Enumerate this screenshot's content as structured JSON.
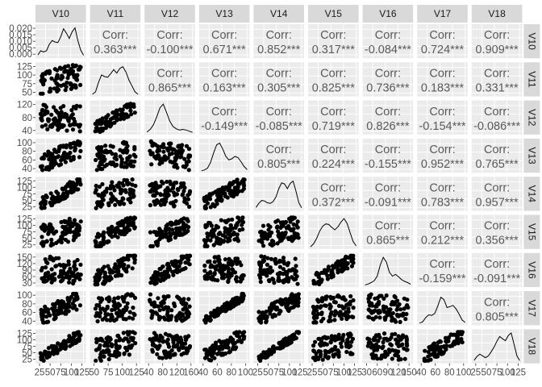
{
  "chart_data": {
    "type": "scatter-matrix",
    "title": "",
    "variables": [
      "V10",
      "V11",
      "V12",
      "V13",
      "V14",
      "V15",
      "V16",
      "V17",
      "V18"
    ],
    "corr_label": "Corr:",
    "correlations": [
      [
        "",
        "0.363***",
        "-0.100***",
        "0.671***",
        "0.852***",
        "0.317***",
        "-0.084***",
        "0.724***",
        "0.909***"
      ],
      [
        "",
        "",
        "0.865***",
        "0.163***",
        "0.305***",
        "0.825***",
        "0.736***",
        "0.183***",
        "0.331***"
      ],
      [
        "",
        "",
        "",
        "-0.149***",
        "-0.085***",
        "0.719***",
        "0.826***",
        "-0.154***",
        "-0.086***"
      ],
      [
        "",
        "",
        "",
        "",
        "0.805***",
        "0.224***",
        "-0.155***",
        "0.952***",
        "0.765***"
      ],
      [
        "",
        "",
        "",
        "",
        "",
        "0.372***",
        "-0.091***",
        "0.783***",
        "0.957***"
      ],
      [
        "",
        "",
        "",
        "",
        "",
        "",
        "0.865***",
        "0.212***",
        "0.356***"
      ],
      [
        "",
        "",
        "",
        "",
        "",
        "",
        "",
        "-0.159***",
        "-0.091***"
      ],
      [
        "",
        "",
        "",
        "",
        "",
        "",
        "",
        "",
        "0.805***"
      ],
      [
        "",
        "",
        "",
        "",
        "",
        "",
        "",
        "",
        ""
      ]
    ],
    "y_tick_labels": [
      [
        "0.020",
        "0.015",
        "0.010",
        "0.005",
        "0.000"
      ],
      [
        "125",
        "100",
        "75",
        "50"
      ],
      [
        "120",
        "80",
        "40"
      ],
      [
        "100",
        "80",
        "60",
        "40"
      ],
      [
        "125",
        "100",
        "75",
        "50",
        "25"
      ],
      [
        "125",
        "100",
        "75",
        "50",
        "25"
      ],
      [
        "150",
        "120",
        "90",
        "60",
        "30"
      ],
      [
        "100",
        "80",
        "60",
        "40"
      ],
      [
        "125",
        "100",
        "75",
        "50",
        "25"
      ]
    ],
    "x_tick_labels": [
      [
        "25",
        "50",
        "75",
        "100",
        "125"
      ],
      [
        "50",
        "75",
        "100",
        "125"
      ],
      [
        "40",
        "80",
        "120",
        "160"
      ],
      [
        "40",
        "60",
        "80",
        "100"
      ],
      [
        "25",
        "50",
        "75",
        "100",
        "125"
      ],
      [
        "25",
        "50",
        "75",
        "100",
        "125"
      ],
      [
        "30",
        "60",
        "90",
        "120",
        "150"
      ],
      [
        "40",
        "60",
        "80",
        "100"
      ],
      [
        "25",
        "50",
        "75",
        "100",
        "125"
      ]
    ],
    "density_series": [
      [
        0.06,
        0.2,
        0.16,
        0.2,
        0.42,
        0.55,
        0.5,
        0.48,
        0.68,
        0.95,
        0.8,
        0.62,
        0.85,
        0.98,
        0.55,
        0.22,
        0.05
      ],
      [
        0.02,
        0.1,
        0.42,
        0.68,
        0.62,
        0.6,
        0.72,
        0.86,
        0.74,
        0.9,
        0.96,
        0.78,
        0.5,
        0.3,
        0.1,
        0.02
      ],
      [
        0.03,
        0.12,
        0.28,
        0.55,
        0.86,
        0.98,
        0.7,
        0.4,
        0.22,
        0.14,
        0.1,
        0.12,
        0.1,
        0.06,
        0.02
      ],
      [
        0.01,
        0.04,
        0.1,
        0.3,
        0.62,
        0.9,
        0.95,
        0.75,
        0.5,
        0.38,
        0.42,
        0.5,
        0.46,
        0.32,
        0.16,
        0.05
      ],
      [
        0.06,
        0.2,
        0.3,
        0.28,
        0.22,
        0.2,
        0.26,
        0.42,
        0.7,
        0.9,
        0.86,
        0.7,
        0.88,
        0.96,
        0.62,
        0.22,
        0.05
      ],
      [
        0.02,
        0.12,
        0.3,
        0.55,
        0.72,
        0.8,
        0.78,
        0.68,
        0.6,
        0.7,
        0.86,
        0.98,
        0.82,
        0.5,
        0.2,
        0.05
      ],
      [
        0.02,
        0.05,
        0.1,
        0.16,
        0.32,
        0.7,
        0.96,
        0.8,
        0.45,
        0.32,
        0.38,
        0.3,
        0.2,
        0.14,
        0.1,
        0.04
      ],
      [
        0.02,
        0.06,
        0.2,
        0.3,
        0.28,
        0.35,
        0.6,
        0.9,
        0.82,
        0.55,
        0.58,
        0.62,
        0.5,
        0.32,
        0.12,
        0.04
      ],
      [
        0.05,
        0.18,
        0.26,
        0.2,
        0.14,
        0.2,
        0.34,
        0.5,
        0.7,
        0.86,
        0.78,
        0.72,
        0.9,
        0.98,
        0.6,
        0.2,
        0.04
      ]
    ],
    "colors": {
      "strip_background": "#d9d9d9",
      "panel_background": "#ebebeb",
      "grid": "#ffffff",
      "points": "#000000",
      "line": "#000000"
    }
  }
}
